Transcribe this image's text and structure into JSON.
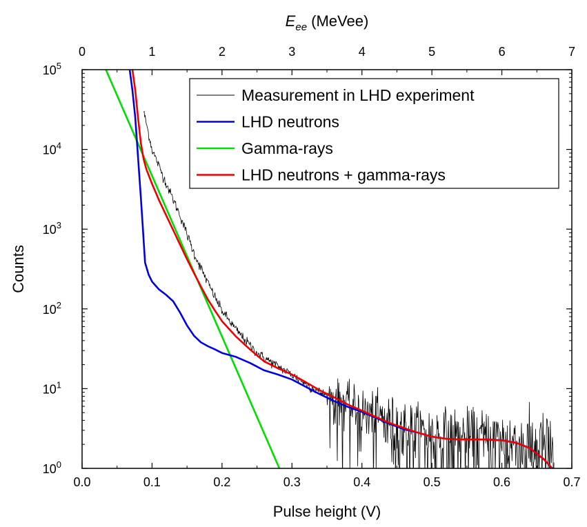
{
  "chart_data": {
    "type": "line",
    "xlabel": "Pulse height (V)",
    "ylabel": "Counts",
    "top_xlabel_symbol": "E",
    "top_xlabel_subscript": "ee",
    "top_xlabel_unit": " (MeVee)",
    "xlim": [
      0.0,
      0.7
    ],
    "ylim": [
      1,
      100000
    ],
    "yscale": "log",
    "top_xlim": [
      0,
      7
    ],
    "top_x_mevee_per_volt": 10,
    "x_ticks": [
      "0.0",
      "0.1",
      "0.2",
      "0.3",
      "0.4",
      "0.5",
      "0.6",
      "0.7"
    ],
    "top_ticks": [
      "0",
      "1",
      "2",
      "3",
      "4",
      "5",
      "6",
      "7"
    ],
    "y_tick_base": "10",
    "y_tick_exponents": [
      "0",
      "1",
      "2",
      "3",
      "4",
      "5"
    ],
    "grid": false,
    "legend_position": "top-right",
    "series": [
      {
        "name": "Measurement in LHD experiment",
        "color": "#000000",
        "style": "noisy",
        "x": [
          0.088,
          0.1,
          0.12,
          0.14,
          0.16,
          0.18,
          0.2,
          0.22,
          0.25,
          0.28,
          0.3,
          0.33,
          0.36,
          0.4,
          0.44,
          0.48,
          0.52,
          0.56,
          0.6,
          0.63,
          0.66,
          0.675
        ],
        "y": [
          30000,
          10000,
          3800,
          1500,
          500,
          210,
          95,
          55,
          28,
          19,
          15,
          10,
          7.5,
          5.2,
          3.8,
          2.8,
          2.4,
          2.3,
          2.2,
          2.0,
          1.9,
          1.8
        ]
      },
      {
        "name": "LHD neutrons",
        "color": "#0000dd",
        "style": "smooth",
        "x": [
          0.068,
          0.072,
          0.076,
          0.08,
          0.084,
          0.087,
          0.09,
          0.095,
          0.1,
          0.11,
          0.12,
          0.13,
          0.14,
          0.15,
          0.16,
          0.17,
          0.18,
          0.19,
          0.2,
          0.22,
          0.24,
          0.26,
          0.28,
          0.3,
          0.32,
          0.34,
          0.36,
          0.38,
          0.4,
          0.42,
          0.44,
          0.46,
          0.48,
          0.5,
          0.52,
          0.54,
          0.56,
          0.58,
          0.6,
          0.62,
          0.64,
          0.66,
          0.672
        ],
        "y": [
          100000,
          55000,
          25000,
          8000,
          2500,
          1000,
          380,
          270,
          220,
          175,
          150,
          125,
          90,
          62,
          46,
          38,
          34,
          31,
          28,
          25,
          21,
          17,
          15,
          13,
          10.5,
          8.5,
          7.0,
          5.9,
          5.1,
          4.3,
          3.6,
          3.1,
          2.8,
          2.5,
          2.35,
          2.3,
          2.3,
          2.3,
          2.25,
          2.1,
          1.8,
          1.3,
          1.0
        ]
      },
      {
        "name": "Gamma-rays",
        "color": "#00dd00",
        "style": "smooth",
        "x": [
          0.034,
          0.282
        ],
        "y": [
          100000,
          1
        ]
      },
      {
        "name": "LHD neutrons + gamma-rays",
        "color": "#ee0000",
        "style": "smooth",
        "x": [
          0.072,
          0.076,
          0.08,
          0.084,
          0.088,
          0.092,
          0.1,
          0.11,
          0.12,
          0.13,
          0.14,
          0.15,
          0.16,
          0.17,
          0.18,
          0.19,
          0.2,
          0.22,
          0.24,
          0.26,
          0.28,
          0.3,
          0.32,
          0.34,
          0.36,
          0.38,
          0.4,
          0.42,
          0.44,
          0.46,
          0.48,
          0.5,
          0.52,
          0.54,
          0.56,
          0.58,
          0.6,
          0.62,
          0.64,
          0.66,
          0.672
        ],
        "y": [
          100000,
          55000,
          25000,
          12000,
          7500,
          5600,
          3700,
          2300,
          1500,
          980,
          640,
          420,
          280,
          190,
          130,
          95,
          70,
          45,
          31,
          22,
          18,
          15,
          12,
          9.5,
          7.8,
          6.3,
          5.3,
          4.4,
          3.7,
          3.2,
          2.8,
          2.5,
          2.35,
          2.3,
          2.3,
          2.3,
          2.25,
          2.1,
          1.8,
          1.3,
          1.0
        ]
      }
    ]
  }
}
